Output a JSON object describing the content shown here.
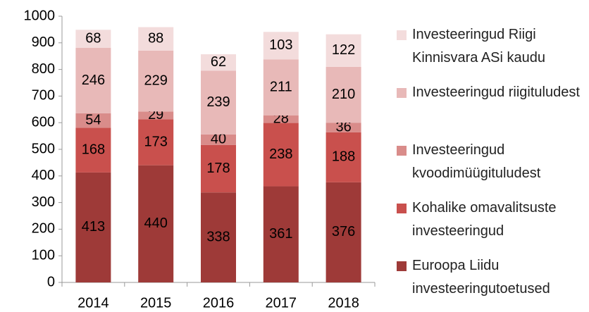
{
  "chart_data": {
    "type": "stacked_bar",
    "categories": [
      "2014",
      "2015",
      "2016",
      "2017",
      "2018"
    ],
    "series": [
      {
        "name": "Euroopa Liidu investeeringutoetused",
        "color": "#9e3a38",
        "values": [
          413,
          440,
          338,
          361,
          376
        ]
      },
      {
        "name": "Kohalike omavalitsuste investeeringud",
        "color": "#c9504d",
        "values": [
          168,
          173,
          178,
          238,
          188
        ]
      },
      {
        "name": "Investeeringud kvoodimüügituludest",
        "color": "#d98c8a",
        "values": [
          54,
          29,
          40,
          28,
          36
        ]
      },
      {
        "name": "Investeeringud riigituludest",
        "color": "#e8b9b8",
        "values": [
          246,
          229,
          239,
          211,
          210
        ]
      },
      {
        "name": "Investeeringud Riigi Kinnisvara ASi kaudu",
        "color": "#f3dcdc",
        "values": [
          68,
          88,
          62,
          103,
          122
        ]
      }
    ],
    "ylim": [
      0,
      1000
    ],
    "yticks": [
      0,
      100,
      200,
      300,
      400,
      500,
      600,
      700,
      800,
      900,
      1000
    ],
    "legend": "right",
    "grid": false
  }
}
